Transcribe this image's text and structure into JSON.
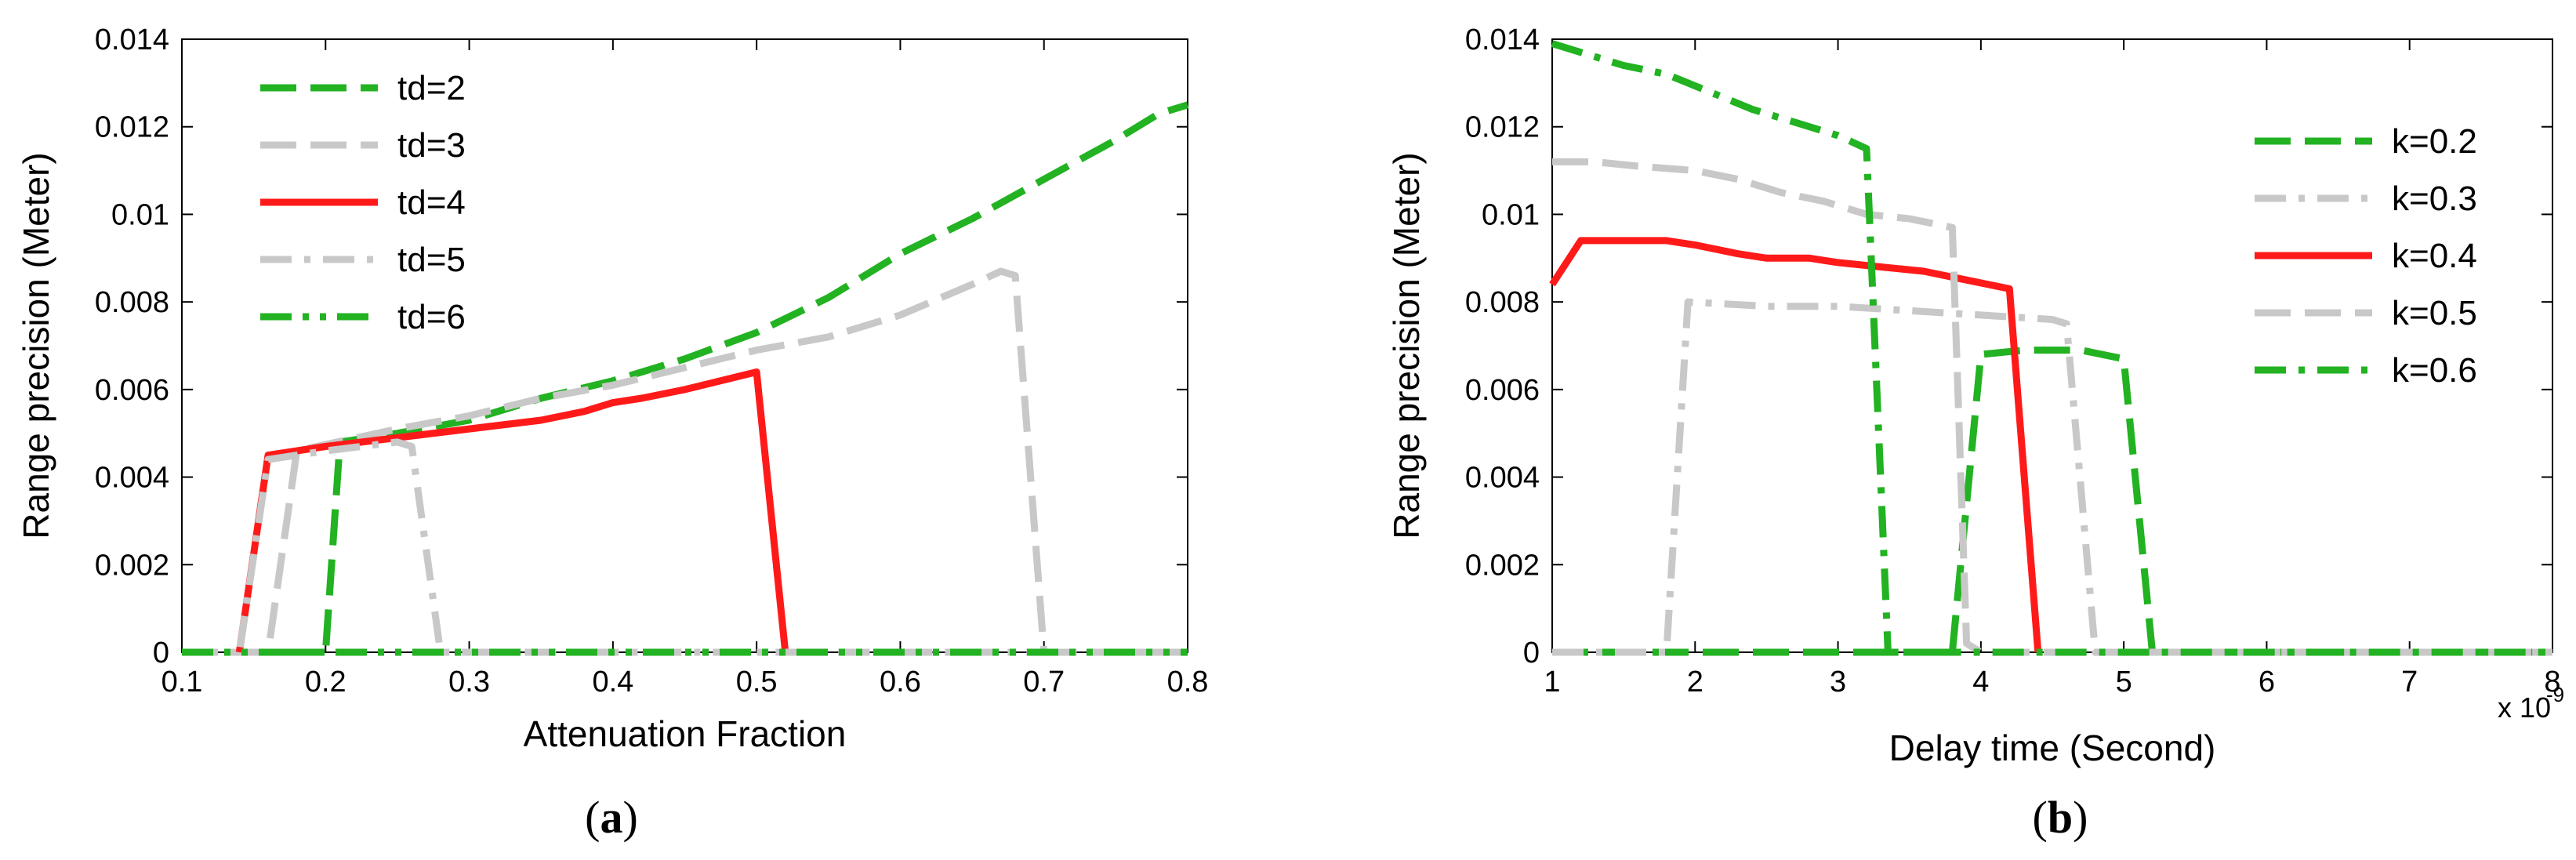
{
  "chart_data": [
    {
      "type": "line",
      "caption_open": "(",
      "caption_letter": "a",
      "caption_close": ")",
      "xlabel": "Attenuation Fraction",
      "ylabel": "Range precision (Meter)",
      "xlim": [
        0.1,
        0.8
      ],
      "ylim": [
        0,
        0.014
      ],
      "xticks": [
        "0.1",
        "0.2",
        "0.3",
        "0.4",
        "0.5",
        "0.6",
        "0.7",
        "0.8"
      ],
      "yticks": [
        "0",
        "0.002",
        "0.004",
        "0.006",
        "0.008",
        "0.01",
        "0.012",
        "0.014"
      ],
      "grid": false,
      "legend_position": "top-left",
      "series": [
        {
          "name": "td=2",
          "color": "#22b222",
          "dash": "dashed",
          "x": [
            0.1,
            0.2,
            0.21,
            0.25,
            0.3,
            0.35,
            0.4,
            0.45,
            0.5,
            0.55,
            0.6,
            0.65,
            0.7,
            0.75,
            0.78,
            0.8
          ],
          "y": [
            0,
            0,
            0.0048,
            0.005,
            0.0053,
            0.0058,
            0.0062,
            0.0067,
            0.0073,
            0.0081,
            0.0091,
            0.0099,
            0.0108,
            0.0117,
            0.0123,
            0.0125
          ]
        },
        {
          "name": "td=3",
          "color": "#c8c8c8",
          "dash": "dashed",
          "x": [
            0.1,
            0.16,
            0.18,
            0.25,
            0.3,
            0.35,
            0.4,
            0.45,
            0.5,
            0.55,
            0.6,
            0.65,
            0.67,
            0.68,
            0.7,
            0.8
          ],
          "y": [
            0,
            0,
            0.0046,
            0.0051,
            0.0054,
            0.0058,
            0.0061,
            0.0065,
            0.0069,
            0.0072,
            0.0077,
            0.0084,
            0.0087,
            0.0086,
            0,
            0
          ]
        },
        {
          "name": "td=4",
          "color": "#ff1a1a",
          "dash": "solid",
          "x": [
            0.14,
            0.16,
            0.2,
            0.25,
            0.3,
            0.35,
            0.38,
            0.4,
            0.42,
            0.45,
            0.5,
            0.52
          ],
          "y": [
            0,
            0.0045,
            0.0047,
            0.0049,
            0.0051,
            0.0053,
            0.0055,
            0.0057,
            0.0058,
            0.006,
            0.0064,
            0
          ]
        },
        {
          "name": "td=5",
          "color": "#c8c8c8",
          "dash": "dashdot",
          "x": [
            0.1,
            0.14,
            0.16,
            0.2,
            0.25,
            0.26,
            0.28,
            0.8
          ],
          "y": [
            0,
            0,
            0.0044,
            0.0046,
            0.0048,
            0.0047,
            0,
            0
          ]
        },
        {
          "name": "td=6",
          "color": "#22b222",
          "dash": "dashdotdot",
          "x": [
            0.1,
            0.8
          ],
          "y": [
            0,
            0
          ]
        }
      ]
    },
    {
      "type": "line",
      "caption_open": "(",
      "caption_letter": "b",
      "caption_close": ")",
      "xlabel": "Delay time (Second)",
      "ylabel": "Range precision (Meter)",
      "x_exponent_base": "x 10",
      "x_exponent_power": "-9",
      "xlim": [
        1,
        8
      ],
      "ylim": [
        0,
        0.014
      ],
      "xticks": [
        "1",
        "2",
        "3",
        "4",
        "5",
        "6",
        "7",
        "8"
      ],
      "yticks": [
        "0",
        "0.002",
        "0.004",
        "0.006",
        "0.008",
        "0.01",
        "0.012",
        "0.014"
      ],
      "grid": false,
      "legend_position": "top-right",
      "series": [
        {
          "name": "k=0.2",
          "color": "#22b222",
          "dash": "dashed",
          "x": [
            1,
            3.8,
            4.0,
            4.3,
            4.7,
            5.0,
            5.2,
            8
          ],
          "y": [
            0,
            0,
            0.0068,
            0.0069,
            0.0069,
            0.0067,
            0,
            0
          ]
        },
        {
          "name": "k=0.3",
          "color": "#c8c8c8",
          "dash": "dashdot",
          "x": [
            1,
            1.8,
            1.95,
            2.5,
            3.0,
            3.5,
            4.0,
            4.5,
            4.6,
            4.8,
            8
          ],
          "y": [
            0,
            0,
            0.008,
            0.0079,
            0.0079,
            0.0078,
            0.0077,
            0.0076,
            0.0075,
            0,
            0
          ]
        },
        {
          "name": "k=0.4",
          "color": "#ff1a1a",
          "dash": "solid",
          "x": [
            1,
            1.2,
            1.5,
            1.8,
            2.0,
            2.3,
            2.5,
            2.8,
            3.0,
            3.3,
            3.6,
            3.9,
            4.2,
            4.4
          ],
          "y": [
            0.0084,
            0.0094,
            0.0094,
            0.0094,
            0.0093,
            0.0091,
            0.009,
            0.009,
            0.0089,
            0.0088,
            0.0087,
            0.0085,
            0.0083,
            0
          ]
        },
        {
          "name": "k=0.5",
          "color": "#c8c8c8",
          "dash": "dashed",
          "x": [
            1,
            1.3,
            1.6,
            2.0,
            2.3,
            2.6,
            2.9,
            3.2,
            3.5,
            3.8,
            3.9,
            4.0,
            8
          ],
          "y": [
            0.0112,
            0.0112,
            0.0111,
            0.011,
            0.0108,
            0.0105,
            0.0103,
            0.01,
            0.0099,
            0.0097,
            0.0002,
            0,
            0
          ]
        },
        {
          "name": "k=0.6",
          "color": "#22b222",
          "dash": "dashdot",
          "x": [
            1,
            1.2,
            1.5,
            1.8,
            2.1,
            2.4,
            2.7,
            3.0,
            3.2,
            3.35,
            3.5,
            8
          ],
          "y": [
            0.0139,
            0.0137,
            0.0134,
            0.0132,
            0.0128,
            0.0124,
            0.0121,
            0.0118,
            0.0115,
            0,
            0,
            0
          ]
        }
      ]
    }
  ]
}
